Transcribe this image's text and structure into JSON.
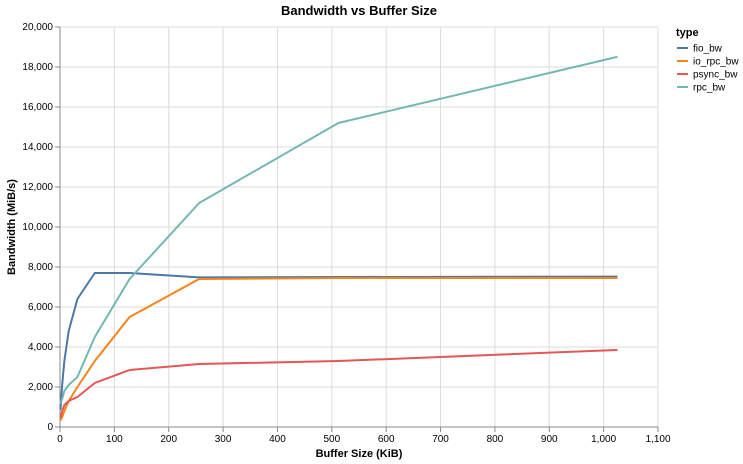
{
  "chart_data": {
    "type": "line",
    "title": "Bandwidth vs Buffer Size",
    "xlabel": "Buffer Size (KiB)",
    "ylabel": "Bandwidth (MiB/s)",
    "xlim": [
      0,
      1100
    ],
    "ylim": [
      0,
      20000
    ],
    "x_ticks": [
      0,
      100,
      200,
      300,
      400,
      500,
      600,
      700,
      800,
      900,
      1000,
      1100
    ],
    "x_tick_labels": [
      "0",
      "100",
      "200",
      "300",
      "400",
      "500",
      "600",
      "700",
      "800",
      "900",
      "1,000",
      "1,100"
    ],
    "y_ticks": [
      0,
      2000,
      4000,
      6000,
      8000,
      10000,
      12000,
      14000,
      16000,
      18000,
      20000
    ],
    "y_tick_labels": [
      "0",
      "2,000",
      "4,000",
      "6,000",
      "8,000",
      "10,000",
      "12,000",
      "14,000",
      "16,000",
      "18,000",
      "20,000"
    ],
    "grid": true,
    "legend": {
      "title": "type",
      "position": "right"
    },
    "series": [
      {
        "name": "fio_bw",
        "color": "#4c78a8",
        "points": [
          [
            1,
            900
          ],
          [
            4,
            2100
          ],
          [
            8,
            3300
          ],
          [
            16,
            4800
          ],
          [
            32,
            6400
          ],
          [
            64,
            7700
          ],
          [
            128,
            7700
          ],
          [
            256,
            7480
          ],
          [
            512,
            7500
          ],
          [
            1024,
            7520
          ]
        ]
      },
      {
        "name": "io_rpc_bw",
        "color": "#f58518",
        "points": [
          [
            1,
            350
          ],
          [
            4,
            500
          ],
          [
            8,
            800
          ],
          [
            16,
            1300
          ],
          [
            32,
            2000
          ],
          [
            64,
            3300
          ],
          [
            128,
            5500
          ],
          [
            256,
            7400
          ],
          [
            512,
            7450
          ],
          [
            1024,
            7450
          ]
        ]
      },
      {
        "name": "psync_bw",
        "color": "#e45756",
        "points": [
          [
            1,
            500
          ],
          [
            4,
            800
          ],
          [
            8,
            1100
          ],
          [
            16,
            1300
          ],
          [
            32,
            1500
          ],
          [
            64,
            2200
          ],
          [
            128,
            2850
          ],
          [
            256,
            3150
          ],
          [
            512,
            3300
          ],
          [
            1024,
            3850
          ]
        ]
      },
      {
        "name": "rpc_bw",
        "color": "#72b7b2",
        "points": [
          [
            1,
            1200
          ],
          [
            4,
            1400
          ],
          [
            8,
            1800
          ],
          [
            16,
            2100
          ],
          [
            32,
            2500
          ],
          [
            64,
            4500
          ],
          [
            128,
            7400
          ],
          [
            256,
            11200
          ],
          [
            512,
            15200
          ],
          [
            1024,
            18500
          ]
        ]
      }
    ]
  }
}
